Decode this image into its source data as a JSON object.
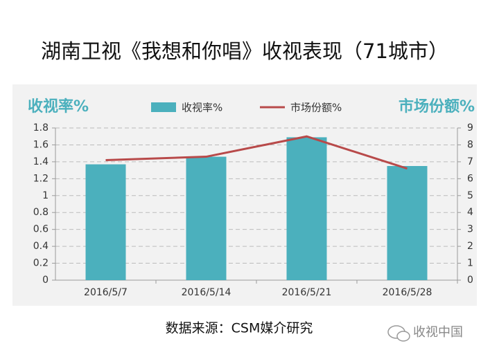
{
  "chart_data": {
    "type": "bar-line",
    "title": "湖南卫视《我想和你唱》收视表现（71城市）",
    "y_label": "收视率%",
    "y2_label": "市场份额%",
    "categories": [
      "2016/5/7",
      "2016/5/14",
      "2016/5/21",
      "2016/5/28"
    ],
    "series": [
      {
        "name": "收视率%",
        "type": "bar",
        "color": "#4bb0bd",
        "values": [
          1.37,
          1.46,
          1.69,
          1.35
        ]
      },
      {
        "name": "市场份额%",
        "type": "line",
        "color": "#b84a4a",
        "axis": "y2",
        "values": [
          7.1,
          7.3,
          8.5,
          6.6
        ]
      }
    ],
    "ylim": [
      0,
      1.8
    ],
    "yticks": [
      0,
      0.2,
      0.4,
      0.6,
      0.8,
      1,
      1.2,
      1.4,
      1.6,
      1.8
    ],
    "y2lim": [
      0,
      9
    ],
    "y2ticks": [
      0,
      1,
      2,
      3,
      4,
      5,
      6,
      7,
      8,
      9
    ],
    "grid": true,
    "source": "数据来源：CSM媒介研究",
    "watermark": "收视中国"
  }
}
